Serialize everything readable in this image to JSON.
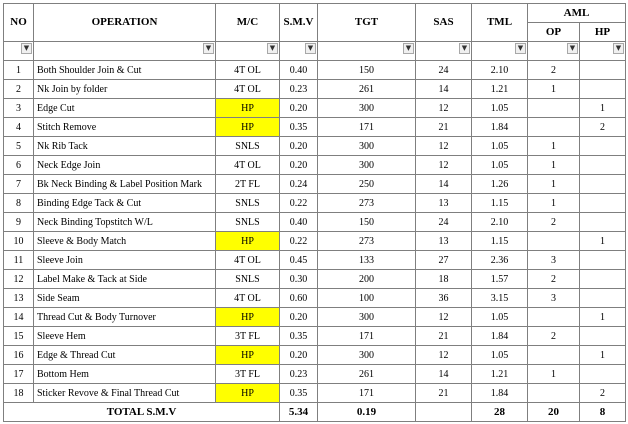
{
  "headers": {
    "no": "NO",
    "operation": "OPERATION",
    "mc": "M/C",
    "smv": "S.M.V",
    "tgt": "TGT",
    "sas": "SAS",
    "tml": "TML",
    "aml": "AML",
    "op": "OP",
    "hp": "HP"
  },
  "filter_icon": "dropdown-arrow-icon",
  "highlight_color": "#ffff00",
  "rows": [
    {
      "no": "1",
      "operation": "Both Shoulder Join & Cut",
      "mc": "4T OL",
      "smv": "0.40",
      "tgt": "150",
      "sas": "24",
      "tml": "2.10",
      "op": "2",
      "hp": "",
      "highlight": false
    },
    {
      "no": "2",
      "operation": "Nk Join by folder",
      "mc": "4T OL",
      "smv": "0.23",
      "tgt": "261",
      "sas": "14",
      "tml": "1.21",
      "op": "1",
      "hp": "",
      "highlight": false
    },
    {
      "no": "3",
      "operation": "Edge Cut",
      "mc": "HP",
      "smv": "0.20",
      "tgt": "300",
      "sas": "12",
      "tml": "1.05",
      "op": "",
      "hp": "1",
      "highlight": true
    },
    {
      "no": "4",
      "operation": "Stitch Remove",
      "mc": "HP",
      "smv": "0.35",
      "tgt": "171",
      "sas": "21",
      "tml": "1.84",
      "op": "",
      "hp": "2",
      "highlight": true
    },
    {
      "no": "5",
      "operation": "Nk Rib Tack",
      "mc": "SNLS",
      "smv": "0.20",
      "tgt": "300",
      "sas": "12",
      "tml": "1.05",
      "op": "1",
      "hp": "",
      "highlight": false
    },
    {
      "no": "6",
      "operation": "Neck Edge Join",
      "mc": "4T OL",
      "smv": "0.20",
      "tgt": "300",
      "sas": "12",
      "tml": "1.05",
      "op": "1",
      "hp": "",
      "highlight": false
    },
    {
      "no": "7",
      "operation": "Bk Neck Binding  & Label Position Mark",
      "mc": "2T FL",
      "smv": "0.24",
      "tgt": "250",
      "sas": "14",
      "tml": "1.26",
      "op": "1",
      "hp": "",
      "highlight": false
    },
    {
      "no": "8",
      "operation": "Binding Edge Tack & Cut",
      "mc": "SNLS",
      "smv": "0.22",
      "tgt": "273",
      "sas": "13",
      "tml": "1.15",
      "op": "1",
      "hp": "",
      "highlight": false
    },
    {
      "no": "9",
      "operation": "Neck Binding Topstitch W/L",
      "mc": "SNLS",
      "smv": "0.40",
      "tgt": "150",
      "sas": "24",
      "tml": "2.10",
      "op": "2",
      "hp": "",
      "highlight": false
    },
    {
      "no": "10",
      "operation": "Sleeve & Body Match",
      "mc": "HP",
      "smv": "0.22",
      "tgt": "273",
      "sas": "13",
      "tml": "1.15",
      "op": "",
      "hp": "1",
      "highlight": true
    },
    {
      "no": "11",
      "operation": "Sleeve Join",
      "mc": "4T OL",
      "smv": "0.45",
      "tgt": "133",
      "sas": "27",
      "tml": "2.36",
      "op": "3",
      "hp": "",
      "highlight": false
    },
    {
      "no": "12",
      "operation": "Label Make & Tack at Side",
      "mc": "SNLS",
      "smv": "0.30",
      "tgt": "200",
      "sas": "18",
      "tml": "1.57",
      "op": "2",
      "hp": "",
      "highlight": false
    },
    {
      "no": "13",
      "operation": "Side Seam",
      "mc": "4T OL",
      "smv": "0.60",
      "tgt": "100",
      "sas": "36",
      "tml": "3.15",
      "op": "3",
      "hp": "",
      "highlight": false
    },
    {
      "no": "14",
      "operation": "Thread Cut & Body Turnover",
      "mc": "HP",
      "smv": "0.20",
      "tgt": "300",
      "sas": "12",
      "tml": "1.05",
      "op": "",
      "hp": "1",
      "highlight": true
    },
    {
      "no": "15",
      "operation": "Sleeve Hem",
      "mc": "3T FL",
      "smv": "0.35",
      "tgt": "171",
      "sas": "21",
      "tml": "1.84",
      "op": "2",
      "hp": "",
      "highlight": false
    },
    {
      "no": "16",
      "operation": "Edge  & Thread Cut",
      "mc": "HP",
      "smv": "0.20",
      "tgt": "300",
      "sas": "12",
      "tml": "1.05",
      "op": "",
      "hp": "1",
      "highlight": true
    },
    {
      "no": "17",
      "operation": "Bottom Hem",
      "mc": "3T FL",
      "smv": "0.23",
      "tgt": "261",
      "sas": "14",
      "tml": "1.21",
      "op": "1",
      "hp": "",
      "highlight": false
    },
    {
      "no": "18",
      "operation": "Sticker Revove & Final Thread Cut",
      "mc": "HP",
      "smv": "0.35",
      "tgt": "171",
      "sas": "21",
      "tml": "1.84",
      "op": "",
      "hp": "2",
      "highlight": true
    }
  ],
  "total": {
    "label": "TOTAL S.M.V",
    "smv": "5.34",
    "tgt": "0.19",
    "sas": "",
    "tml": "28",
    "op": "20",
    "hp": "8"
  }
}
